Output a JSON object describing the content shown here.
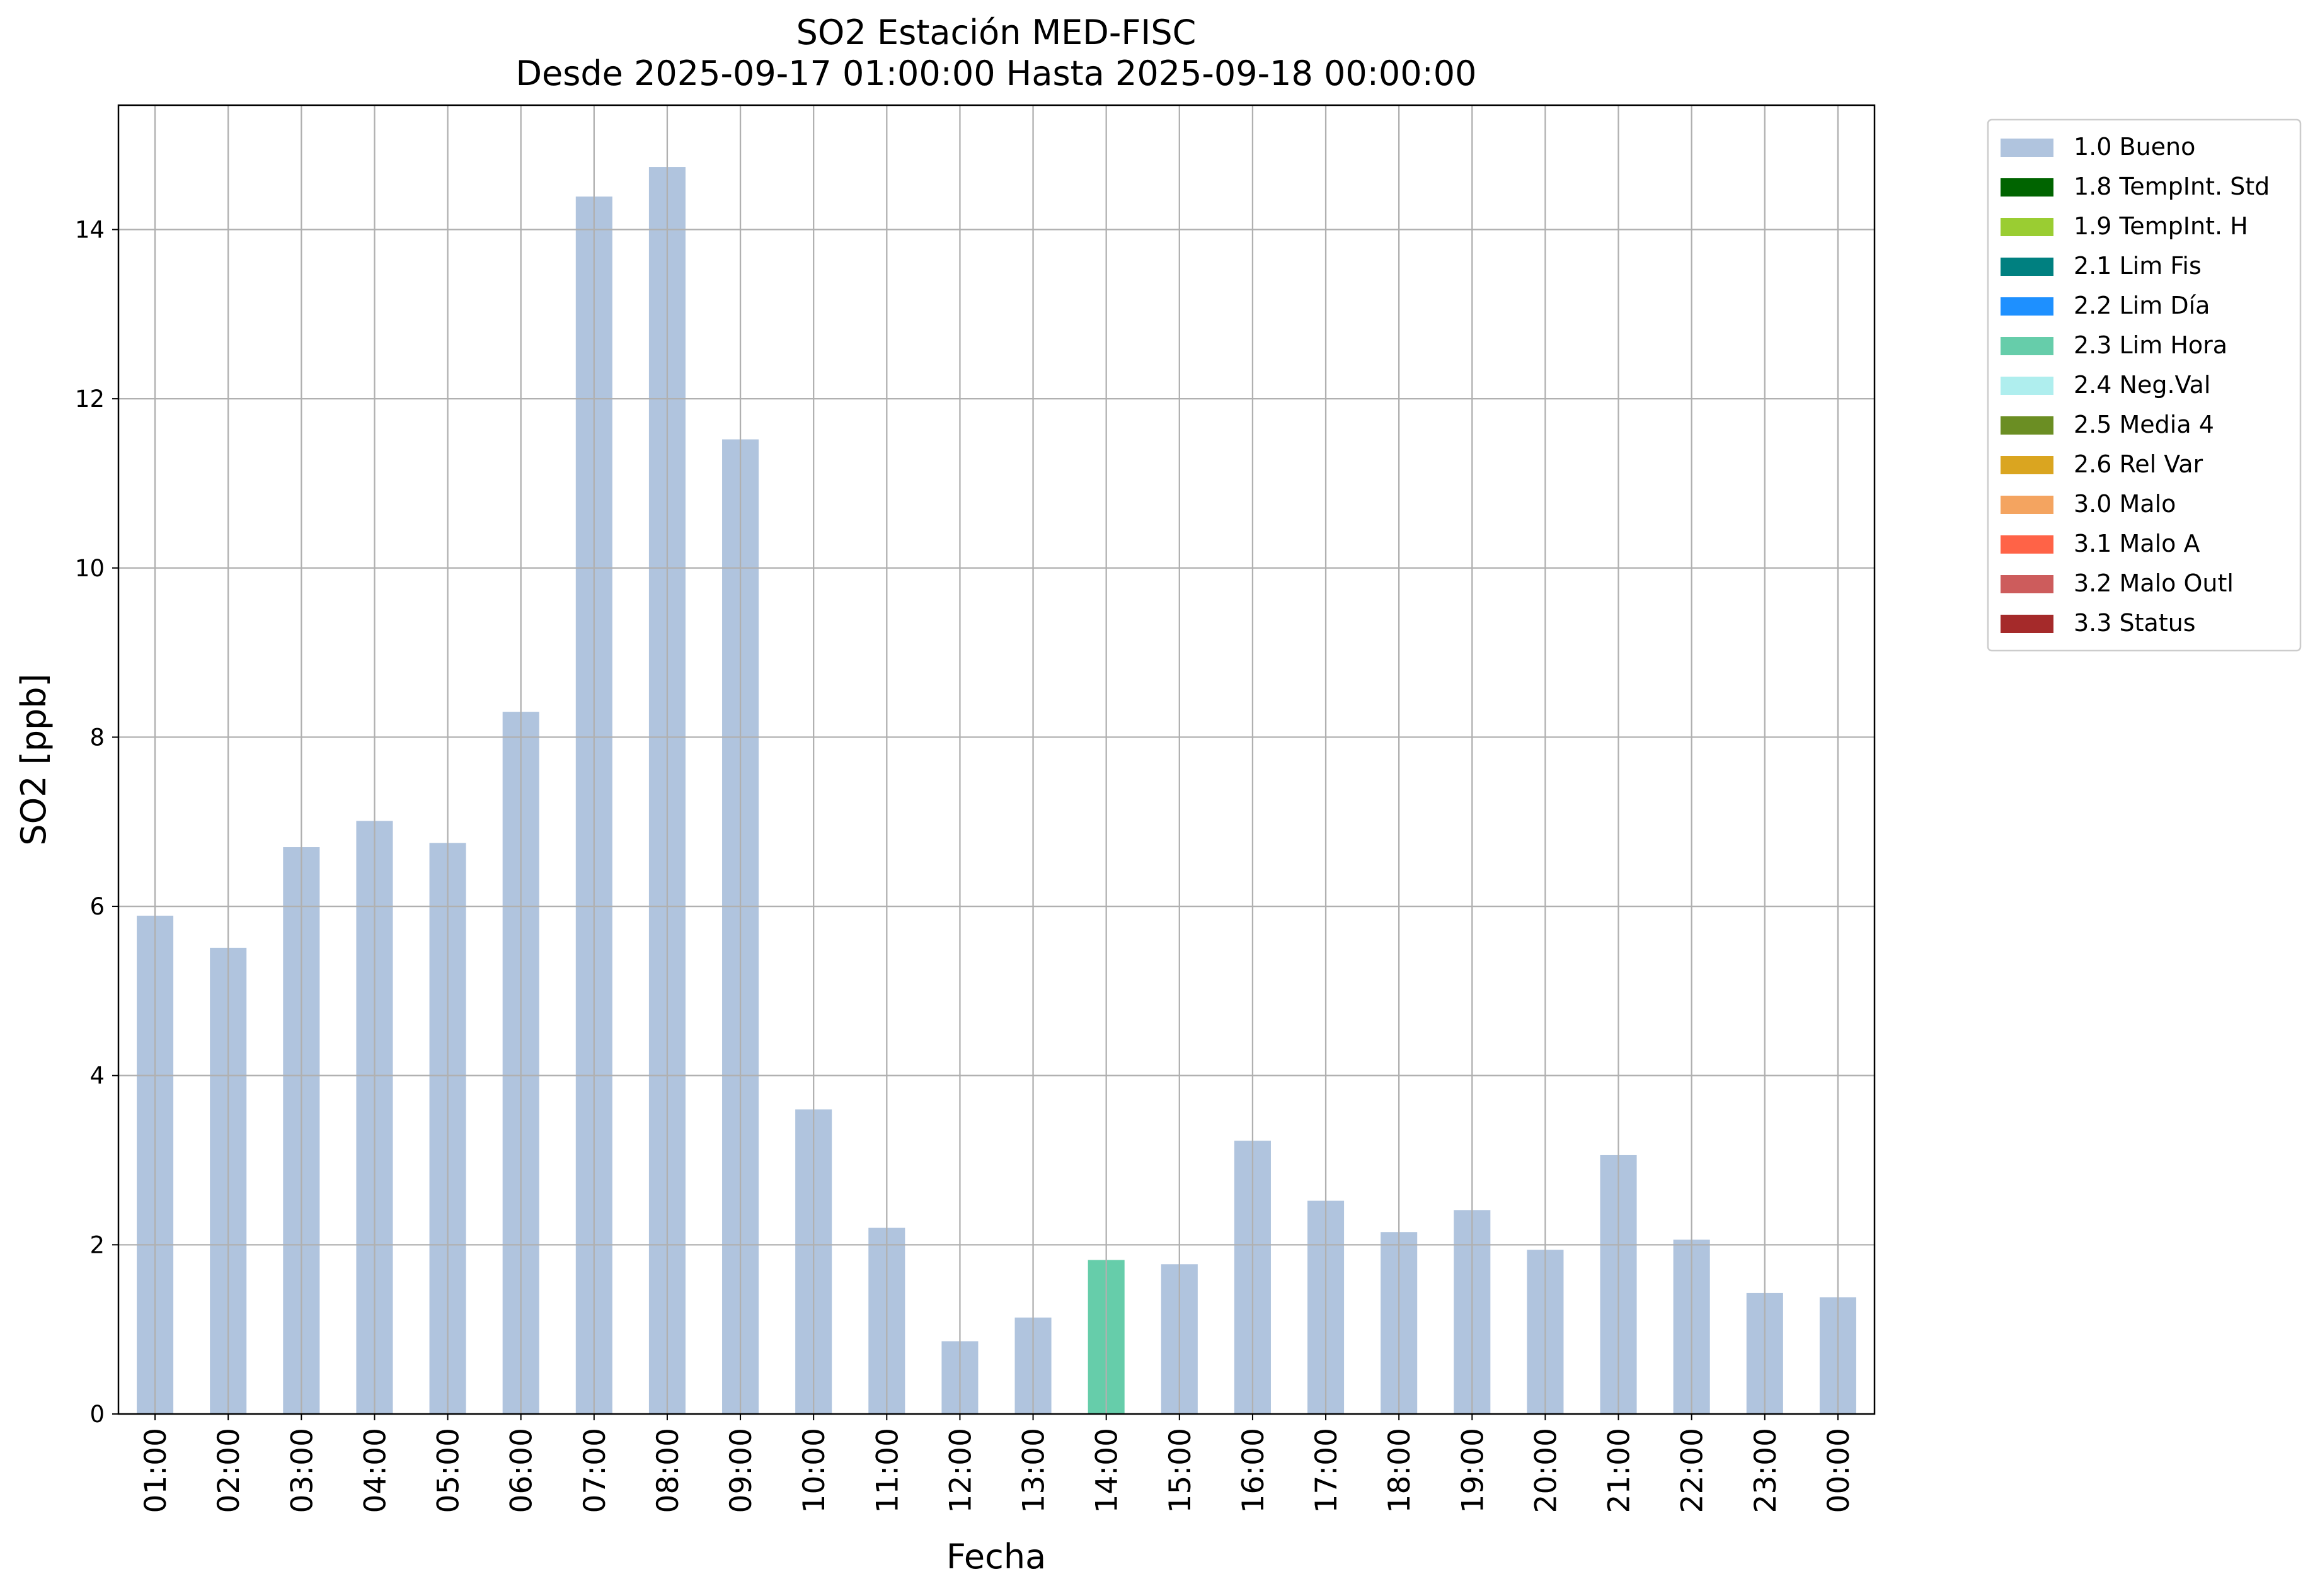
{
  "chart_data": {
    "type": "bar",
    "stacked": true,
    "title": "SO2 Estación MED-FISC",
    "subtitle": "Desde 2025-09-17 01:00:00 Hasta 2025-09-18 00:00:00",
    "x_label": "Fecha",
    "y_label": "SO2 [ppb]",
    "categories": [
      "01:00",
      "02:00",
      "03:00",
      "04:00",
      "05:00",
      "06:00",
      "07:00",
      "08:00",
      "09:00",
      "10:00",
      "11:00",
      "12:00",
      "13:00",
      "14:00",
      "15:00",
      "16:00",
      "17:00",
      "18:00",
      "19:00",
      "20:00",
      "21:00",
      "22:00",
      "23:00",
      "00:00"
    ],
    "series": [
      {
        "name": "1.0 Bueno",
        "color": "#b0c4de",
        "values": [
          5.89,
          5.51,
          6.7,
          7.01,
          6.75,
          8.3,
          14.39,
          14.74,
          11.52,
          3.6,
          2.2,
          0.86,
          1.14,
          null,
          1.77,
          3.23,
          2.52,
          2.15,
          2.41,
          1.94,
          3.06,
          2.06,
          1.43,
          1.38
        ]
      },
      {
        "name": "1.8 TempInt. Std",
        "color": "#006400",
        "values": [
          null,
          null,
          null,
          null,
          null,
          null,
          null,
          null,
          null,
          null,
          null,
          null,
          null,
          null,
          null,
          null,
          null,
          null,
          null,
          null,
          null,
          null,
          null,
          null
        ]
      },
      {
        "name": "1.9 TempInt. H",
        "color": "#9acd32",
        "values": [
          null,
          null,
          null,
          null,
          null,
          null,
          null,
          null,
          null,
          null,
          null,
          null,
          null,
          null,
          null,
          null,
          null,
          null,
          null,
          null,
          null,
          null,
          null,
          null
        ]
      },
      {
        "name": "2.1 Lim Fis",
        "color": "#008080",
        "values": [
          null,
          null,
          null,
          null,
          null,
          null,
          null,
          null,
          null,
          null,
          null,
          null,
          null,
          null,
          null,
          null,
          null,
          null,
          null,
          null,
          null,
          null,
          null,
          null
        ]
      },
      {
        "name": "2.2 Lim Día",
        "color": "#1e90ff",
        "values": [
          null,
          null,
          null,
          null,
          null,
          null,
          null,
          null,
          null,
          null,
          null,
          null,
          null,
          null,
          null,
          null,
          null,
          null,
          null,
          null,
          null,
          null,
          null,
          null
        ]
      },
      {
        "name": "2.3 Lim Hora",
        "color": "#66cdaa",
        "values": [
          null,
          null,
          null,
          null,
          null,
          null,
          null,
          null,
          null,
          null,
          null,
          null,
          null,
          1.82,
          null,
          null,
          null,
          null,
          null,
          null,
          null,
          null,
          null,
          null
        ]
      },
      {
        "name": "2.4 Neg.Val",
        "color": "#afeeee",
        "values": [
          null,
          null,
          null,
          null,
          null,
          null,
          null,
          null,
          null,
          null,
          null,
          null,
          null,
          null,
          null,
          null,
          null,
          null,
          null,
          null,
          null,
          null,
          null,
          null
        ]
      },
      {
        "name": "2.5 Media 4",
        "color": "#6b8e23",
        "values": [
          null,
          null,
          null,
          null,
          null,
          null,
          null,
          null,
          null,
          null,
          null,
          null,
          null,
          null,
          null,
          null,
          null,
          null,
          null,
          null,
          null,
          null,
          null,
          null
        ]
      },
      {
        "name": "2.6 Rel Var",
        "color": "#daa520",
        "values": [
          null,
          null,
          null,
          null,
          null,
          null,
          null,
          null,
          null,
          null,
          null,
          null,
          null,
          null,
          null,
          null,
          null,
          null,
          null,
          null,
          null,
          null,
          null,
          null
        ]
      },
      {
        "name": "3.0 Malo",
        "color": "#f4a460",
        "values": [
          null,
          null,
          null,
          null,
          null,
          null,
          null,
          null,
          null,
          null,
          null,
          null,
          null,
          null,
          null,
          null,
          null,
          null,
          null,
          null,
          null,
          null,
          null,
          null
        ]
      },
      {
        "name": "3.1 Malo A",
        "color": "#ff6347",
        "values": [
          null,
          null,
          null,
          null,
          null,
          null,
          null,
          null,
          null,
          null,
          null,
          null,
          null,
          null,
          null,
          null,
          null,
          null,
          null,
          null,
          null,
          null,
          null,
          null
        ]
      },
      {
        "name": "3.2 Malo Outl",
        "color": "#cd5c5c",
        "values": [
          null,
          null,
          null,
          null,
          null,
          null,
          null,
          null,
          null,
          null,
          null,
          null,
          null,
          null,
          null,
          null,
          null,
          null,
          null,
          null,
          null,
          null,
          null,
          null
        ]
      },
      {
        "name": "3.3 Status",
        "color": "#a52a2a",
        "values": [
          null,
          null,
          null,
          null,
          null,
          null,
          null,
          null,
          null,
          null,
          null,
          null,
          null,
          null,
          null,
          null,
          null,
          null,
          null,
          null,
          null,
          null,
          null,
          null
        ]
      }
    ],
    "ylim": [
      0,
      15.47
    ],
    "yticks": [
      0,
      2,
      4,
      6,
      8,
      10,
      12,
      14
    ],
    "grid": true,
    "legend": "outside-right"
  }
}
